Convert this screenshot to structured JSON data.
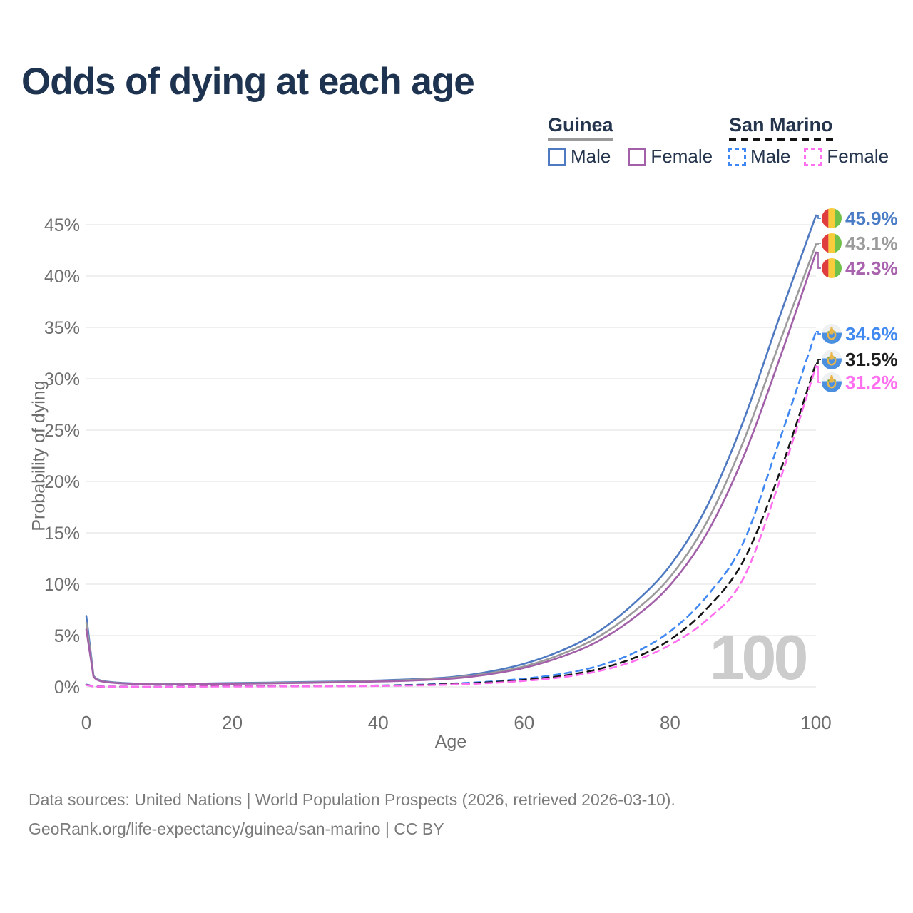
{
  "title": "Odds of dying at each age",
  "legend": {
    "groups": [
      {
        "name": "Guinea",
        "line_style": "solid",
        "underline_color": "#9a9a9a",
        "items": [
          {
            "label": "Male",
            "color": "#4f7ac1"
          },
          {
            "label": "Female",
            "color": "#a160a8"
          }
        ]
      },
      {
        "name": "San Marino",
        "line_style": "dashed",
        "underline_color": "#141414",
        "items": [
          {
            "label": "Male",
            "color": "#3f87f2"
          },
          {
            "label": "Female",
            "color": "#ff6ff0"
          }
        ]
      }
    ]
  },
  "y_axis": {
    "label": "Probability of dying",
    "ticks": [
      "0%",
      "5%",
      "10%",
      "15%",
      "20%",
      "25%",
      "30%",
      "35%",
      "40%",
      "45%"
    ],
    "tick_values": [
      0,
      5,
      10,
      15,
      20,
      25,
      30,
      35,
      40,
      45
    ]
  },
  "x_axis": {
    "label": "Age",
    "ticks": [
      "0",
      "20",
      "40",
      "60",
      "80",
      "100"
    ],
    "tick_values": [
      0,
      20,
      40,
      60,
      80,
      100
    ]
  },
  "watermark": "100",
  "footer": {
    "line1": "Data sources: United Nations | World Population Prospects (2026, retrieved 2026-03-10).",
    "line2": "GeoRank.org/life-expectancy/guinea/san-marino | CC BY"
  },
  "colors": {
    "title": "#1e3350",
    "axis_text": "#6e6e6e",
    "gridline": "#eaeaea",
    "watermark": "#cccccc",
    "guinea_flag": [
      "#e03e3e",
      "#f8cc3a",
      "#70c04a"
    ],
    "san_marino_flag": [
      "#eef0f2",
      "#4a8fe0",
      "#e8b64a"
    ]
  },
  "chart_data": {
    "type": "line",
    "title": "Odds of dying at each age",
    "xlabel": "Age",
    "ylabel": "Probability of dying",
    "xlim": [
      0,
      100
    ],
    "ylim_percent": [
      0,
      46
    ],
    "grid": "horizontal",
    "legend_position": "top-right",
    "ages": [
      0,
      1,
      2,
      5,
      10,
      15,
      20,
      25,
      30,
      35,
      40,
      45,
      50,
      55,
      60,
      65,
      70,
      75,
      80,
      85,
      90,
      95,
      100
    ],
    "series": [
      {
        "name": "Guinea Male",
        "country": "Guinea",
        "sex": "male",
        "color": "#4f7ac1",
        "dash": "solid",
        "end_label": "45.9%",
        "end_label_color": "#4a7cc6",
        "values_percent": [
          6.9,
          1.05,
          0.62,
          0.38,
          0.27,
          0.31,
          0.37,
          0.42,
          0.47,
          0.53,
          0.62,
          0.75,
          0.95,
          1.45,
          2.25,
          3.5,
          5.3,
          8.1,
          11.8,
          17.5,
          25.8,
          36.0,
          45.9
        ]
      },
      {
        "name": "Guinea Both sexes",
        "country": "Guinea",
        "sex": "both",
        "color": "#9b9b9b",
        "dash": "solid",
        "end_label": "43.1%",
        "end_label_color": "#9b9b9b",
        "values_percent": [
          6.25,
          1.0,
          0.58,
          0.35,
          0.25,
          0.28,
          0.33,
          0.38,
          0.43,
          0.49,
          0.57,
          0.69,
          0.88,
          1.3,
          2.0,
          3.15,
          4.8,
          7.3,
          10.7,
          16.0,
          23.8,
          33.5,
          43.1
        ]
      },
      {
        "name": "Guinea Female",
        "country": "Guinea",
        "sex": "female",
        "color": "#a160a8",
        "dash": "solid",
        "end_label": "42.3%",
        "end_label_color": "#a963ae",
        "values_percent": [
          5.6,
          0.95,
          0.55,
          0.33,
          0.23,
          0.26,
          0.3,
          0.34,
          0.39,
          0.45,
          0.52,
          0.63,
          0.8,
          1.2,
          1.85,
          2.9,
          4.4,
          6.7,
          9.9,
          14.9,
          22.3,
          31.9,
          42.3
        ]
      },
      {
        "name": "San Marino Male",
        "country": "San Marino",
        "sex": "male",
        "color": "#3f87f2",
        "dash": "dashed",
        "end_label": "34.6%",
        "end_label_color": "#4089f0",
        "values_percent": [
          0.22,
          0.05,
          0.03,
          0.02,
          0.02,
          0.05,
          0.08,
          0.08,
          0.09,
          0.1,
          0.13,
          0.2,
          0.32,
          0.5,
          0.8,
          1.25,
          2.0,
          3.3,
          5.4,
          8.8,
          14.0,
          24.0,
          34.6
        ]
      },
      {
        "name": "San Marino Both sexes",
        "country": "San Marino",
        "sex": "both",
        "color": "#151515",
        "dash": "dashed",
        "end_label": "31.5%",
        "end_label_color": "#1d1d1d",
        "values_percent": [
          0.2,
          0.045,
          0.027,
          0.018,
          0.018,
          0.04,
          0.06,
          0.065,
          0.07,
          0.08,
          0.11,
          0.17,
          0.27,
          0.43,
          0.68,
          1.05,
          1.7,
          2.8,
          4.6,
          7.6,
          12.2,
          20.8,
          31.5
        ]
      },
      {
        "name": "San Marino Female",
        "country": "San Marino",
        "sex": "female",
        "color": "#ff6ff0",
        "dash": "dashed",
        "end_label": "31.2%",
        "end_label_color": "#ff6ff0",
        "values_percent": [
          0.18,
          0.04,
          0.025,
          0.015,
          0.015,
          0.03,
          0.04,
          0.045,
          0.05,
          0.06,
          0.09,
          0.14,
          0.22,
          0.36,
          0.58,
          0.92,
          1.5,
          2.5,
          4.1,
          6.5,
          10.5,
          20.0,
          31.2
        ]
      }
    ]
  }
}
